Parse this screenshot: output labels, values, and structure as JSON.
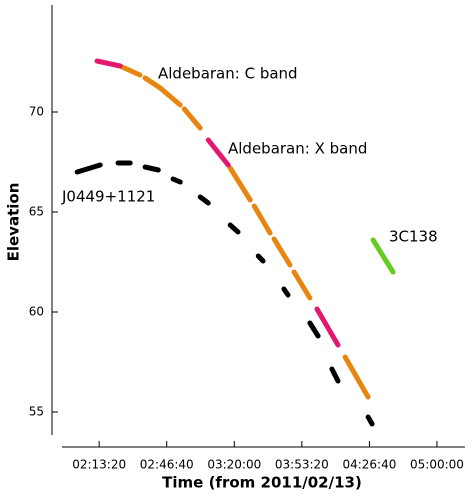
{
  "chart_data": {
    "type": "line",
    "x_label": "Time (from 2011/02/13)",
    "y_label": "Elevation",
    "xlim": [
      6900,
      18830
    ],
    "ylim": [
      53.85,
      75.35
    ],
    "xticks": [
      {
        "value": 8000,
        "label": "02:13:20"
      },
      {
        "value": 10000,
        "label": "02:46:40"
      },
      {
        "value": 12000,
        "label": "03:20:00"
      },
      {
        "value": 14000,
        "label": "03:53:20"
      },
      {
        "value": 16000,
        "label": "04:26:40"
      },
      {
        "value": 18000,
        "label": "05:00:00"
      }
    ],
    "yticks": [
      55,
      60,
      65,
      70
    ],
    "series": [
      {
        "name": "Aldebaran: C band",
        "color": "#e8850f",
        "label_color": "#9c6a1c",
        "x": [
          8620,
          9210,
          9290,
          9360,
          9810,
          10400,
          10460,
          10520,
          10990,
          11430,
          11880,
          12470,
          12530,
          12590,
          13060,
          13120,
          13180,
          13650,
          13710,
          13770,
          14240,
          14760,
          15280,
          15960
        ],
        "values": [
          72.3,
          71.85,
          null,
          71.7,
          71.2,
          70.35,
          null,
          70.15,
          69.2,
          null,
          67.2,
          65.6,
          null,
          65.3,
          63.95,
          null,
          63.65,
          62.35,
          null,
          62.0,
          60.7,
          null,
          57.75,
          55.75
        ]
      },
      {
        "name": "Aldebaran: X band",
        "color": "#e3176f",
        "label_color": "#a3306c",
        "x": [
          7940,
          8620,
          9900,
          11230,
          11820,
          13100,
          14450,
          15070
        ],
        "values": [
          72.55,
          72.3,
          null,
          68.6,
          67.35,
          null,
          60.15,
          58.35
        ]
      },
      {
        "name": "J0449+1121",
        "color": "#000000",
        "label_color": "#000000",
        "x": [
          7350,
          8030,
          8300,
          8560,
          8920,
          9140,
          9360,
          9750,
          9970,
          10190,
          10400,
          10690,
          10990,
          11230,
          11550,
          11880,
          12110,
          12400,
          12710,
          12850,
          13160,
          13470,
          13590,
          13910,
          14240,
          14480,
          14690,
          14890,
          15070,
          15510,
          15960,
          16080
        ],
        "values": [
          67.0,
          67.35,
          null,
          67.45,
          67.45,
          null,
          67.25,
          67.1,
          null,
          66.65,
          66.5,
          null,
          65.75,
          65.45,
          null,
          64.35,
          64.0,
          null,
          62.8,
          62.55,
          null,
          61.15,
          60.85,
          null,
          59.45,
          58.8,
          null,
          57.15,
          56.55,
          null,
          54.75,
          54.4
        ]
      },
      {
        "name": "3C138",
        "color": "#66cc1f",
        "label_color": "#2e9e1a",
        "x": [
          16110,
          16700
        ],
        "values": [
          63.6,
          62.0
        ]
      }
    ]
  }
}
